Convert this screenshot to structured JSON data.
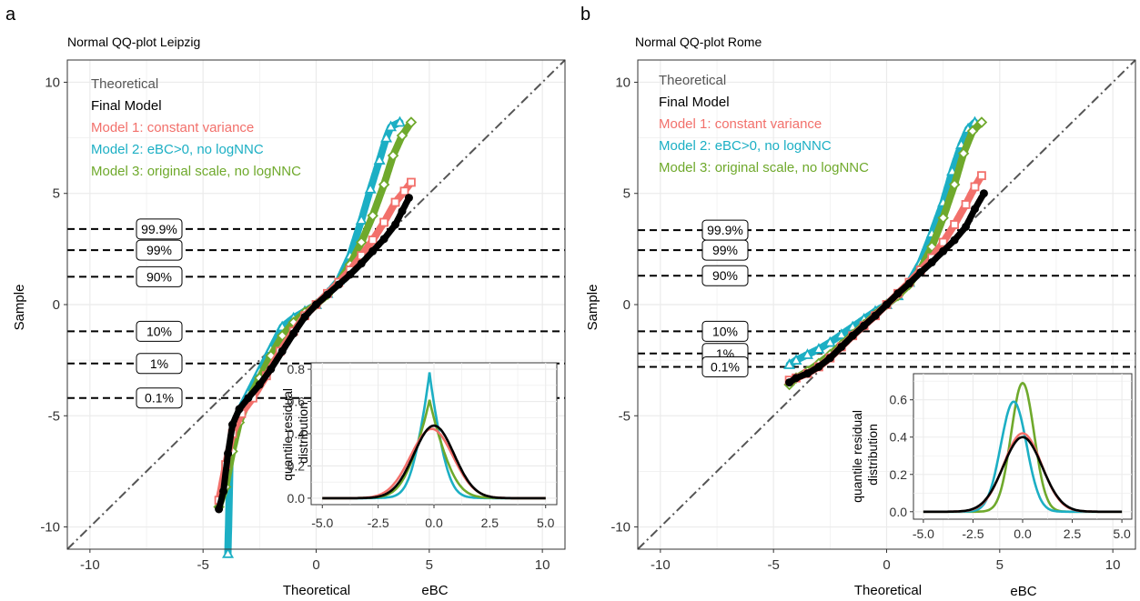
{
  "figure": {
    "panel_labels": [
      "a",
      "b"
    ],
    "colors": {
      "theoretical": "#555555",
      "final_model": "#000000",
      "model1": "#F2706B",
      "model2": "#1CAFC4",
      "model3": "#6FA92C"
    }
  },
  "chart_data": [
    {
      "type": "scatter",
      "panel": "a",
      "title": "Normal QQ-plot Leipzig",
      "xlabel": "Theoretical",
      "ylabel": "Sample",
      "xlim": [
        -11,
        11
      ],
      "ylim": [
        -11,
        11
      ],
      "xticks": [
        -10,
        -5,
        0,
        5,
        10
      ],
      "yticks": [
        -10,
        -5,
        0,
        5,
        10
      ],
      "grid": true,
      "legend_position": "top-left",
      "legend": [
        "Theoretical",
        "Final Model",
        "Model 1: constant variance",
        "Model 2: eBC>0, no logNNC",
        "Model 3: original scale, no logNNC"
      ],
      "reference_line": {
        "name": "Theoretical",
        "slope": 1,
        "intercept": 0
      },
      "quantile_lines": [
        {
          "label": "99.9%",
          "y": 3.4
        },
        {
          "label": "99%",
          "y": 2.45
        },
        {
          "label": "90%",
          "y": 1.25
        },
        {
          "label": "10%",
          "y": -1.2
        },
        {
          "label": "1%",
          "y": -2.65
        },
        {
          "label": "0.1%",
          "y": -4.2
        }
      ],
      "series": [
        {
          "name": "Final Model",
          "points": [
            [
              -4.3,
              -9.2
            ],
            [
              -4.1,
              -8.4
            ],
            [
              -3.9,
              -6.7
            ],
            [
              -3.7,
              -5.4
            ],
            [
              -3.4,
              -4.7
            ],
            [
              -3,
              -4.2
            ],
            [
              -2.5,
              -3.6
            ],
            [
              -2,
              -2.9
            ],
            [
              -1.5,
              -2.1
            ],
            [
              -1,
              -1.3
            ],
            [
              -0.5,
              -0.55
            ],
            [
              0,
              0
            ],
            [
              0.5,
              0.45
            ],
            [
              1,
              0.9
            ],
            [
              1.5,
              1.35
            ],
            [
              2,
              1.85
            ],
            [
              2.5,
              2.4
            ],
            [
              3,
              2.95
            ],
            [
              3.5,
              3.6
            ],
            [
              3.8,
              4.2
            ],
            [
              4.1,
              4.8
            ]
          ]
        },
        {
          "name": "Model 1: constant variance",
          "points": [
            [
              -4.3,
              -8.8
            ],
            [
              -4,
              -7.2
            ],
            [
              -3.7,
              -5.8
            ],
            [
              -3.3,
              -4.9
            ],
            [
              -2.8,
              -4.2
            ],
            [
              -2.2,
              -3.2
            ],
            [
              -1.6,
              -2.1
            ],
            [
              -1,
              -1.2
            ],
            [
              -0.5,
              -0.5
            ],
            [
              0,
              0
            ],
            [
              0.5,
              0.5
            ],
            [
              1,
              1.0
            ],
            [
              1.5,
              1.55
            ],
            [
              2,
              2.2
            ],
            [
              2.5,
              2.9
            ],
            [
              3,
              3.7
            ],
            [
              3.5,
              4.6
            ],
            [
              3.9,
              5.1
            ],
            [
              4.2,
              5.5
            ]
          ]
        },
        {
          "name": "Model 2: eBC>0, no logNNC",
          "points": [
            [
              -3.9,
              -11.2
            ],
            [
              -3.8,
              -6.5
            ],
            [
              -3.5,
              -5.0
            ],
            [
              -3,
              -4.0
            ],
            [
              -2.5,
              -3.0
            ],
            [
              -2,
              -2.0
            ],
            [
              -1.5,
              -1.0
            ],
            [
              -1,
              -0.6
            ],
            [
              -0.5,
              -0.3
            ],
            [
              0,
              0
            ],
            [
              0.5,
              0.5
            ],
            [
              1,
              1.1
            ],
            [
              1.5,
              2.2
            ],
            [
              2,
              3.8
            ],
            [
              2.4,
              5.2
            ],
            [
              2.8,
              6.5
            ],
            [
              3.1,
              7.5
            ],
            [
              3.3,
              8.0
            ],
            [
              3.7,
              8.2
            ]
          ]
        },
        {
          "name": "Model 3: original scale, no logNNC",
          "points": [
            [
              -4.3,
              -9.1
            ],
            [
              -4,
              -8.2
            ],
            [
              -3.7,
              -6.6
            ],
            [
              -3.4,
              -5.3
            ],
            [
              -3,
              -4.3
            ],
            [
              -2.5,
              -3.3
            ],
            [
              -2,
              -2.3
            ],
            [
              -1.5,
              -1.4
            ],
            [
              -1,
              -0.8
            ],
            [
              -0.5,
              -0.35
            ],
            [
              0,
              0
            ],
            [
              0.5,
              0.45
            ],
            [
              1,
              1.0
            ],
            [
              1.5,
              1.8
            ],
            [
              2,
              2.8
            ],
            [
              2.5,
              4.0
            ],
            [
              3,
              5.4
            ],
            [
              3.4,
              6.7
            ],
            [
              3.8,
              7.6
            ],
            [
              4.2,
              8.2
            ]
          ]
        }
      ],
      "inset": {
        "type": "line",
        "xlabel": "eBC",
        "ylabel": "quantile residual distribution",
        "xlim": [
          -5.0,
          5.0
        ],
        "ylim": [
          0,
          0.82
        ],
        "xticks": [
          -5.0,
          -2.5,
          0.0,
          2.5,
          5.0
        ],
        "yticks": [
          0.0,
          0.2,
          0.4,
          0.6,
          0.8
        ],
        "series": [
          {
            "name": "Model 2: eBC>0, no logNNC",
            "peak": 0.78,
            "center": -0.2,
            "scale": 0.55,
            "kind": "laplace"
          },
          {
            "name": "Model 3: original scale, no logNNC",
            "peak": 0.61,
            "center": -0.2,
            "scale": 0.75,
            "kind": "laplace"
          },
          {
            "name": "Model 1: constant variance",
            "peak": 0.43,
            "center": -0.1,
            "scale": 0.95,
            "kind": "gauss"
          },
          {
            "name": "Final Model",
            "peak": 0.45,
            "center": 0.0,
            "scale": 0.9,
            "kind": "gauss"
          }
        ]
      }
    },
    {
      "type": "scatter",
      "panel": "b",
      "title": "Normal QQ-plot Rome",
      "xlabel": "Theoretical",
      "ylabel": "Sample",
      "xlim": [
        -11,
        11
      ],
      "ylim": [
        -11,
        11
      ],
      "xticks": [
        -10,
        -5,
        0,
        5,
        10
      ],
      "yticks": [
        -10,
        -5,
        0,
        5,
        10
      ],
      "grid": true,
      "legend_position": "top-left",
      "legend": [
        "Theoretical",
        "Final Model",
        "Model 1: constant variance",
        "Model 2: eBC>0, no logNNC",
        "Model 3: original scale, no logNNC"
      ],
      "reference_line": {
        "name": "Theoretical",
        "slope": 1,
        "intercept": 0
      },
      "quantile_lines": [
        {
          "label": "99.9%",
          "y": 3.35
        },
        {
          "label": "99%",
          "y": 2.45
        },
        {
          "label": "90%",
          "y": 1.3
        },
        {
          "label": "10%",
          "y": -1.2
        },
        {
          "label": "1%",
          "y": -2.2
        },
        {
          "label": "0.1%",
          "y": -2.8
        }
      ],
      "series": [
        {
          "name": "Final Model",
          "points": [
            [
              -4.3,
              -3.5
            ],
            [
              -4,
              -3.3
            ],
            [
              -3.5,
              -3.1
            ],
            [
              -3,
              -2.8
            ],
            [
              -2.5,
              -2.4
            ],
            [
              -2,
              -1.9
            ],
            [
              -1.5,
              -1.4
            ],
            [
              -1,
              -0.95
            ],
            [
              -0.5,
              -0.5
            ],
            [
              0,
              0
            ],
            [
              0.5,
              0.5
            ],
            [
              1,
              0.95
            ],
            [
              1.5,
              1.45
            ],
            [
              2,
              1.9
            ],
            [
              2.5,
              2.4
            ],
            [
              3,
              2.9
            ],
            [
              3.5,
              3.5
            ],
            [
              3.9,
              4.3
            ],
            [
              4.3,
              5.0
            ]
          ]
        },
        {
          "name": "Model 1: constant variance",
          "points": [
            [
              -4.3,
              -3.4
            ],
            [
              -4,
              -3.3
            ],
            [
              -3.5,
              -3.1
            ],
            [
              -3,
              -2.8
            ],
            [
              -2.5,
              -2.4
            ],
            [
              -2,
              -1.9
            ],
            [
              -1.5,
              -1.4
            ],
            [
              -1,
              -0.95
            ],
            [
              -0.5,
              -0.5
            ],
            [
              0,
              0
            ],
            [
              0.5,
              0.5
            ],
            [
              1,
              1.0
            ],
            [
              1.5,
              1.55
            ],
            [
              2,
              2.1
            ],
            [
              2.5,
              2.8
            ],
            [
              3,
              3.6
            ],
            [
              3.5,
              4.5
            ],
            [
              3.9,
              5.3
            ],
            [
              4.2,
              5.8
            ]
          ]
        },
        {
          "name": "Model 2: eBC>0, no logNNC",
          "points": [
            [
              -4.3,
              -2.7
            ],
            [
              -4,
              -2.5
            ],
            [
              -3.5,
              -2.25
            ],
            [
              -3,
              -2.0
            ],
            [
              -2.5,
              -1.7
            ],
            [
              -2,
              -1.35
            ],
            [
              -1.5,
              -1.0
            ],
            [
              -1,
              -0.65
            ],
            [
              -0.5,
              -0.3
            ],
            [
              0,
              0
            ],
            [
              0.5,
              0.4
            ],
            [
              1,
              1.0
            ],
            [
              1.5,
              1.9
            ],
            [
              2,
              3.2
            ],
            [
              2.5,
              4.6
            ],
            [
              2.9,
              6.0
            ],
            [
              3.3,
              7.2
            ],
            [
              3.6,
              7.9
            ],
            [
              3.9,
              8.2
            ]
          ]
        },
        {
          "name": "Model 3: original scale, no logNNC",
          "points": [
            [
              -4.3,
              -3.6
            ],
            [
              -4,
              -3.3
            ],
            [
              -3.5,
              -3.0
            ],
            [
              -3,
              -2.65
            ],
            [
              -2.5,
              -2.25
            ],
            [
              -2,
              -1.8
            ],
            [
              -1.5,
              -1.35
            ],
            [
              -1,
              -0.9
            ],
            [
              -0.5,
              -0.45
            ],
            [
              0,
              0
            ],
            [
              0.5,
              0.4
            ],
            [
              1,
              0.9
            ],
            [
              1.5,
              1.6
            ],
            [
              2,
              2.6
            ],
            [
              2.5,
              3.9
            ],
            [
              3,
              5.4
            ],
            [
              3.4,
              6.8
            ],
            [
              3.8,
              7.8
            ],
            [
              4.2,
              8.2
            ]
          ]
        }
      ],
      "inset": {
        "type": "line",
        "xlabel": "eBC",
        "ylabel": "quantile residual distribution",
        "xlim": [
          -5.0,
          5.0
        ],
        "ylim": [
          0,
          0.72
        ],
        "xticks": [
          -5.0,
          -2.5,
          0.0,
          2.5,
          5.0
        ],
        "yticks": [
          0.0,
          0.2,
          0.4,
          0.6
        ],
        "series": [
          {
            "name": "Model 3: original scale, no logNNC",
            "peak": 0.69,
            "center": 0.0,
            "scale": 0.58,
            "kind": "gauss"
          },
          {
            "name": "Model 2: eBC>0, no logNNC",
            "peak": 0.59,
            "center": -0.45,
            "scale": 0.65,
            "kind": "gauss"
          },
          {
            "name": "Model 1: constant variance",
            "peak": 0.42,
            "center": 0.0,
            "scale": 0.95,
            "kind": "gauss"
          },
          {
            "name": "Final Model",
            "peak": 0.4,
            "center": 0.0,
            "scale": 0.98,
            "kind": "gauss"
          }
        ]
      }
    }
  ]
}
